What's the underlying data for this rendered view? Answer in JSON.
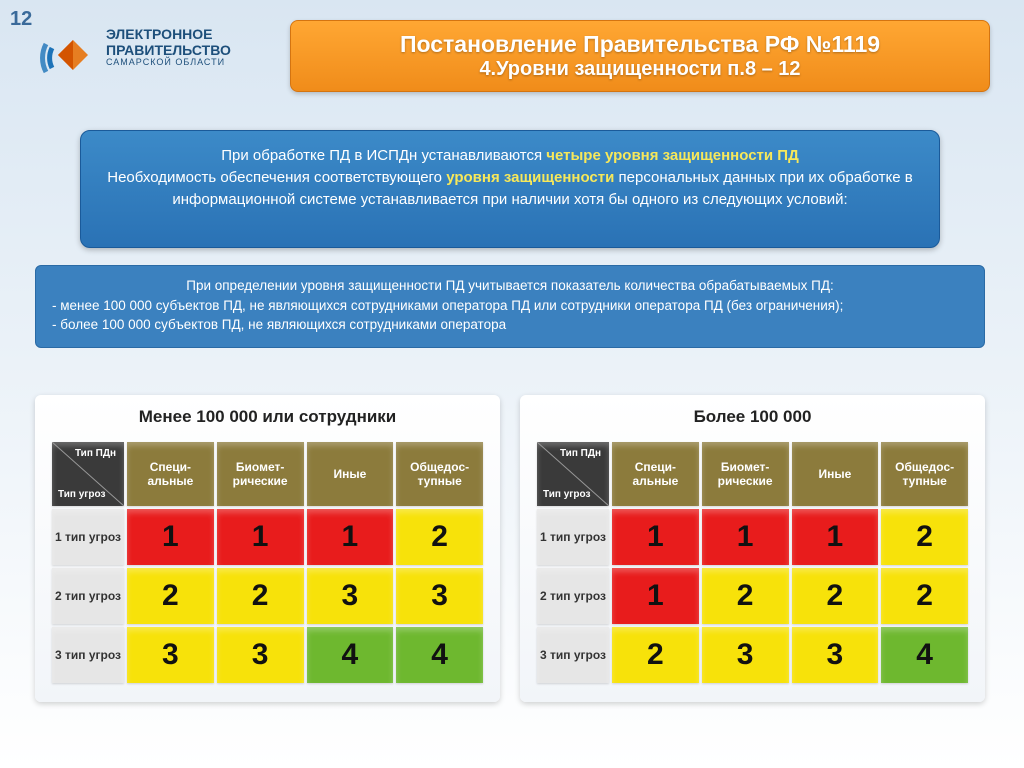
{
  "page_number": "12",
  "logo": {
    "line1": "ЭЛЕКТРОННОЕ",
    "line2": "ПРАВИТЕЛЬСТВО",
    "line3": "САМАРСКОЙ ОБЛАСТИ"
  },
  "title": {
    "line1": "Постановление Правительства РФ №1119",
    "line2": "4.Уровни защищенности п.8 – 12"
  },
  "info_box": {
    "prefix": "При обработке ПД в ИСПДн устанавливаются ",
    "highlight1": "четыре уровня защищенности ПД",
    "mid": "Необходимость обеспечения соответствующего ",
    "highlight2": "уровня защищенности",
    "suffix": " персональных данных при их обработке в информационной системе устанавливается при наличии хотя бы одного из следующих условий:"
  },
  "criteria": {
    "lead": "При определении уровня защищенности ПД  учитывается  показатель  количества  обрабатываемых  ПД:",
    "b1": "-    менее 100 000  субъектов  ПД, не являющихся сотрудниками оператора ПД  или  сотрудники  оператора ПД  (без ограничения);",
    "b2": "-    более 100 000  субъектов  ПД, не являющихся сотрудниками оператора"
  },
  "matrix_headers": {
    "corner_top": "Тип ПДн",
    "corner_bottom": "Тип угроз",
    "cols": [
      "Специ-альные",
      "Биомет-рические",
      "Иные",
      "Общедос-тупные"
    ],
    "rows": [
      "1 тип угроз",
      "2 тип угроз",
      "3 тип угроз"
    ]
  },
  "level_colors": {
    "1": "#e81c1c",
    "2": "#f7e20a",
    "3": "#f7e20a",
    "4": "#6eb82f"
  },
  "table_left": {
    "title": "Менее 100 000 или сотрудники",
    "cells": [
      [
        "1",
        "1",
        "1",
        "2"
      ],
      [
        "2",
        "2",
        "3",
        "3"
      ],
      [
        "3",
        "3",
        "4",
        "4"
      ]
    ],
    "colors": [
      [
        "#e81c1c",
        "#e81c1c",
        "#e81c1c",
        "#f7e20a"
      ],
      [
        "#f7e20a",
        "#f7e20a",
        "#f7e20a",
        "#f7e20a"
      ],
      [
        "#f7e20a",
        "#f7e20a",
        "#6eb82f",
        "#6eb82f"
      ]
    ]
  },
  "table_right": {
    "title": "Более 100 000",
    "cells": [
      [
        "1",
        "1",
        "1",
        "2"
      ],
      [
        "1",
        "2",
        "2",
        "2"
      ],
      [
        "2",
        "3",
        "3",
        "4"
      ]
    ],
    "colors": [
      [
        "#e81c1c",
        "#e81c1c",
        "#e81c1c",
        "#f7e20a"
      ],
      [
        "#e81c1c",
        "#f7e20a",
        "#f7e20a",
        "#f7e20a"
      ],
      [
        "#f7e20a",
        "#f7e20a",
        "#f7e20a",
        "#6eb82f"
      ]
    ]
  }
}
